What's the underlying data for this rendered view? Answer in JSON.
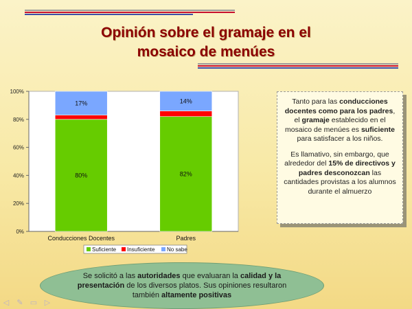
{
  "title_line1": "Opinión sobre el gramaje en el",
  "title_line2": "mosaico de menúes",
  "colors": {
    "suficiente": "#66cc00",
    "insuficiente": "#ff0000",
    "no_sabe": "#7aa7ff",
    "title": "#8b0000"
  },
  "chart_data": {
    "type": "bar",
    "stacked": true,
    "categories": [
      "Conducciones Docentes",
      "Padres"
    ],
    "series": [
      {
        "name": "Suficiente",
        "values": [
          80,
          82
        ]
      },
      {
        "name": "Insuficiente",
        "values": [
          3,
          4
        ]
      },
      {
        "name": "No sabe",
        "values": [
          17,
          14
        ]
      }
    ],
    "data_labels": {
      "Suficiente": [
        "80%",
        "82%"
      ],
      "No sabe": [
        "17%",
        "14%"
      ]
    },
    "y_ticks": [
      "0%",
      "20%",
      "40%",
      "60%",
      "80%",
      "100%"
    ],
    "ylim": [
      0,
      100
    ],
    "legend_position": "bottom",
    "grid": false
  },
  "textbox": {
    "p1": [
      {
        "t": "Tanto para las ",
        "b": false
      },
      {
        "t": "conducciones docentes como para los padres",
        "b": true
      },
      {
        "t": ", el ",
        "b": false
      },
      {
        "t": "gramaje",
        "b": true
      },
      {
        "t": " establecido en el mosaico de menúes es ",
        "b": false
      },
      {
        "t": "suficiente",
        "b": true
      },
      {
        "t": " para satisfacer a los niños.",
        "b": false
      }
    ],
    "p2": [
      {
        "t": "Es llamativo, sin embargo, que alrededor del ",
        "b": false
      },
      {
        "t": "15% de directivos y padres desconozcan",
        "b": true
      },
      {
        "t": " las cantidades provistas a los alumnos durante el almuerzo",
        "b": false
      }
    ]
  },
  "ellipse": [
    {
      "t": "Se solicitó a las ",
      "b": false
    },
    {
      "t": "autoridades",
      "b": true
    },
    {
      "t": " que evaluaran la ",
      "b": false
    },
    {
      "t": "calidad y la presentación",
      "b": true
    },
    {
      "t": " de los diversos platos. Sus opiniones resultaron también ",
      "b": false
    },
    {
      "t": "altamente positivas",
      "b": true
    }
  ],
  "nav_icons": [
    "back-arrow-icon",
    "pen-icon",
    "menu-icon",
    "forward-arrow-icon"
  ]
}
